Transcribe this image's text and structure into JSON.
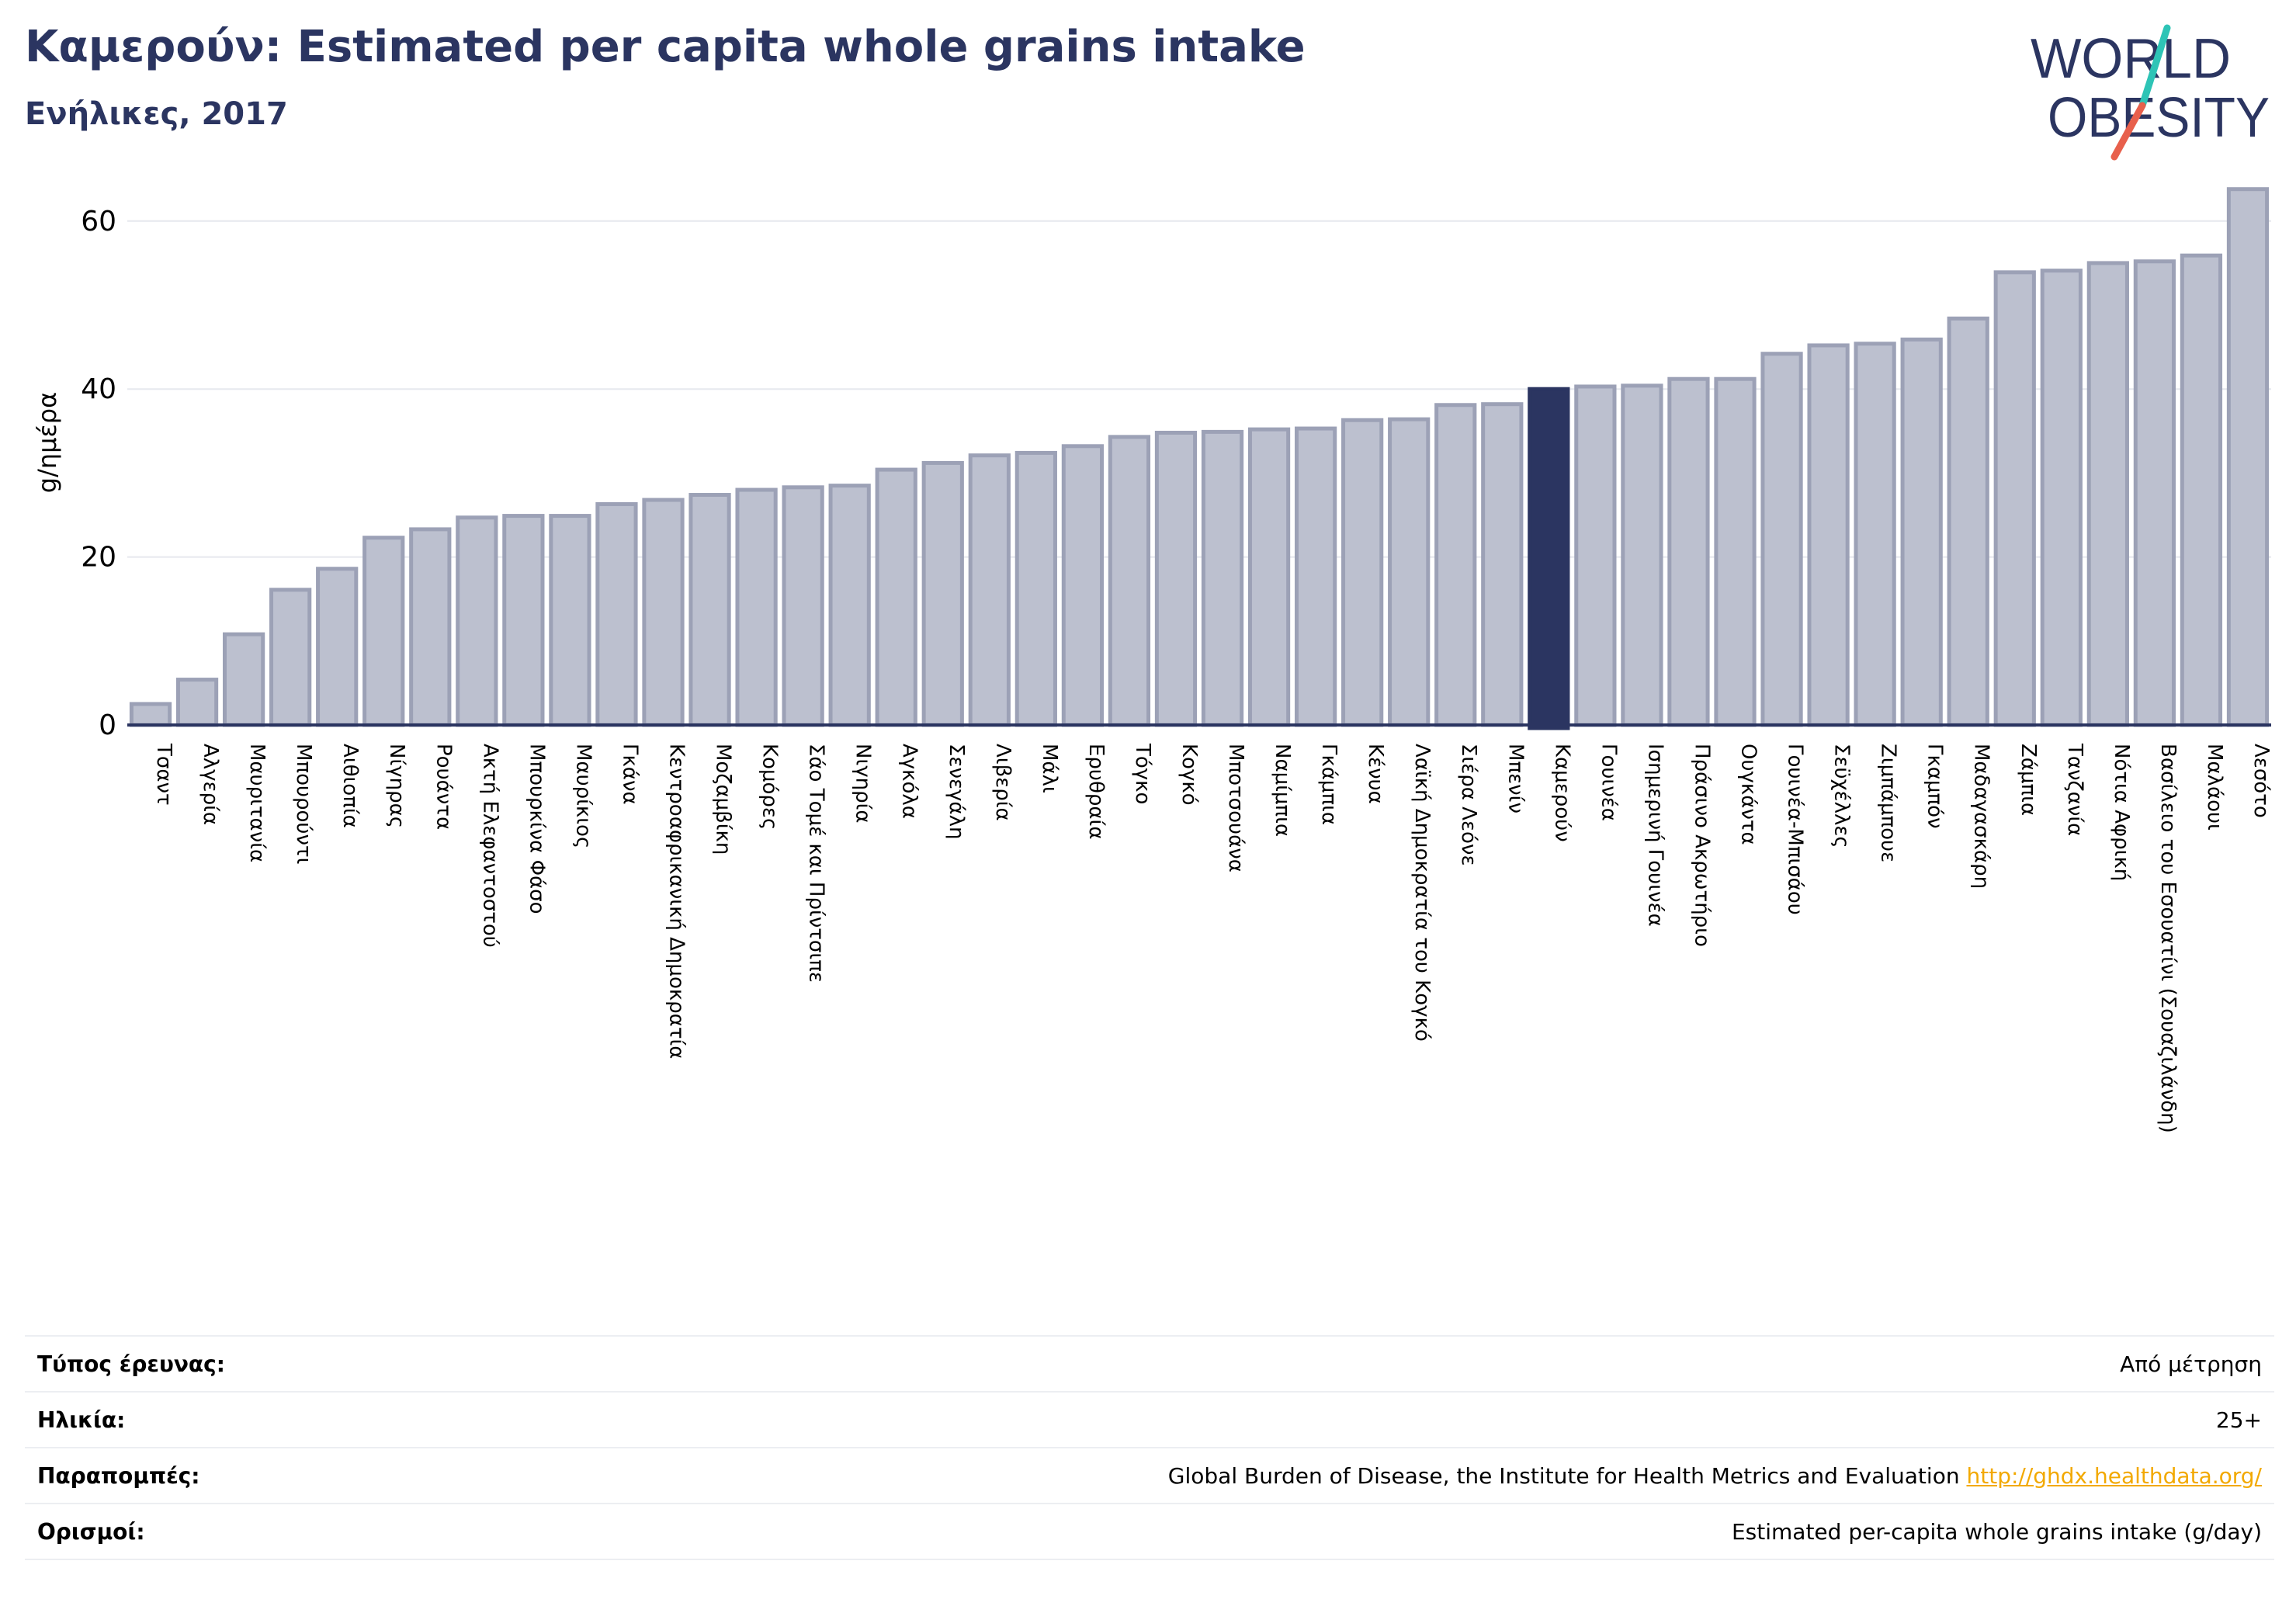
{
  "header": {
    "title": "Καμερούν: Estimated per capita whole grains intake",
    "subtitle": "Ενήλικες, 2017"
  },
  "logo": {
    "line1": "WORLD",
    "line2": "OBESITY",
    "colors": {
      "text": "#2b3561",
      "slash_top": "#2ec4b6",
      "slash_bottom": "#e8604c"
    }
  },
  "chart_data": {
    "type": "bar",
    "title": "",
    "xlabel": "",
    "ylabel": "g/ημέρα",
    "ylim": [
      0,
      65
    ],
    "yticks": [
      0,
      20,
      40,
      60
    ],
    "grid": true,
    "legend": "none",
    "highlight": "Καμερούν",
    "colors": {
      "bar": "#bcc0cf",
      "bar_edge": "#9ca1b6",
      "highlight": "#2b3561",
      "grid": "#e6e8ee"
    },
    "categories": [
      "Τσαντ",
      "Αλγερία",
      "Μαυριτανία",
      "Μπουρούντι",
      "Αιθιοπία",
      "Νίγηρας",
      "Ρουάντα",
      "Ακτή Ελεφαντοστού",
      "Μπουρκίνα Φάσο",
      "Μαυρίκιος",
      "Γκάνα",
      "Κεντροαφρικανική Δημοκρατία",
      "Μοζαμβίκη",
      "Κομόρες",
      "Σάο Τομέ και Πρίντσιπε",
      "Νιγηρία",
      "Αγκόλα",
      "Σενεγάλη",
      "Λιβερία",
      "Μάλι",
      "Ερυθραία",
      "Τόγκο",
      "Κογκό",
      "Μποτσουάνα",
      "Ναμίμπια",
      "Γκάμπια",
      "Κένυα",
      "Λαϊκή Δημοκρατία του Κογκό",
      "Σιέρα Λεόνε",
      "Μπενίν",
      "Καμερούν",
      "Γουινέα",
      "Ισημερινή Γουινέα",
      "Πράσινο Ακρωτήριο",
      "Ουγκάντα",
      "Γουινέα-Μπισάου",
      "Σεϋχέλλες",
      "Ζιμπάμπουε",
      "Γκαμπόν",
      "Μαδαγασκάρη",
      "Ζάμπια",
      "Τανζανία",
      "Νότια Αφρική",
      "Βασίλειο του Εσουατίνι (Σουαζιλάνδη)",
      "Μαλάουι",
      "Λεσότο"
    ],
    "values": [
      2.5,
      5.4,
      10.8,
      16.1,
      18.6,
      22.3,
      23.3,
      24.7,
      24.9,
      24.9,
      26.3,
      26.8,
      27.4,
      28.0,
      28.3,
      28.5,
      30.4,
      31.2,
      32.1,
      32.4,
      33.2,
      34.3,
      34.8,
      34.9,
      35.2,
      35.3,
      36.3,
      36.4,
      38.1,
      38.2,
      40.0,
      40.3,
      40.4,
      41.2,
      41.2,
      44.2,
      45.2,
      45.4,
      45.9,
      48.4,
      53.9,
      54.1,
      55.0,
      55.2,
      55.9,
      63.8
    ]
  },
  "info": {
    "rows": [
      {
        "label": "Τύπος έρευνας:",
        "value": "Από μέτρηση"
      },
      {
        "label": "Ηλικία:",
        "value": "25+"
      },
      {
        "label": "Παραπομπές:",
        "value": "Global Burden of Disease, the Institute for Health Metrics and Evaluation",
        "link": "http://ghdx.healthdata.org/"
      },
      {
        "label": "Ορισμοί:",
        "value": "Estimated per-capita whole grains intake (g/day)"
      }
    ]
  }
}
